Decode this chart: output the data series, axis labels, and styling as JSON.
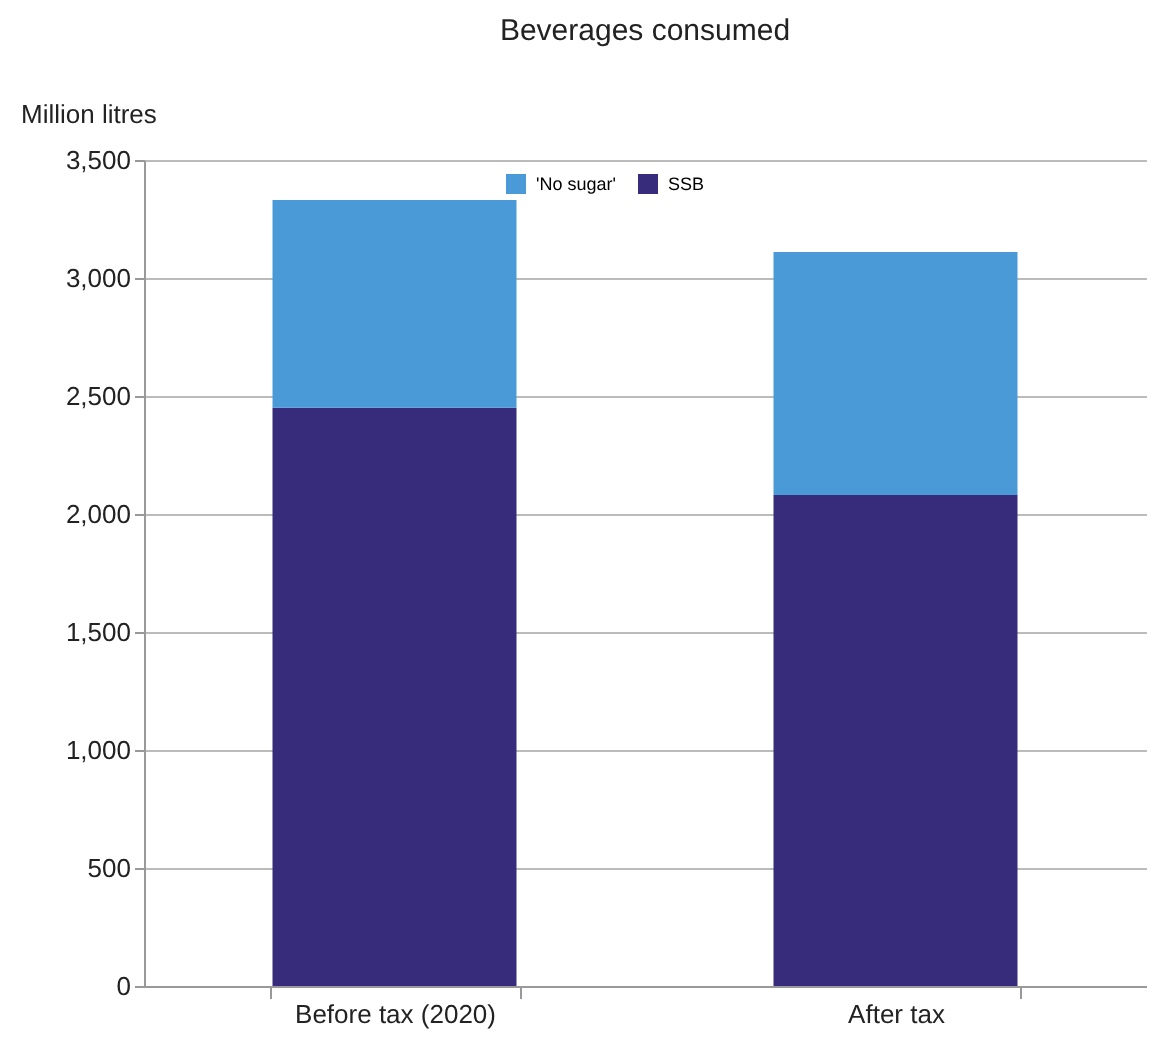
{
  "chart_data": {
    "type": "bar",
    "title": "Beverages consumed",
    "ylabel": "Million litres",
    "categories": [
      "Before tax (2020)",
      "After tax"
    ],
    "stacked": true,
    "series": [
      {
        "name": "SSB",
        "color": "#372c7c",
        "values": [
          2450,
          2080
        ]
      },
      {
        "name": "'No sugar'",
        "color": "#4a9ad8",
        "values": [
          880,
          1030
        ]
      }
    ],
    "ylim": [
      0,
      3500
    ],
    "yticks": [
      0,
      500,
      {
        "value": 1000,
        "label": "1,000"
      },
      {
        "value": 1500,
        "label": "1,500"
      },
      {
        "value": 2000,
        "label": "2,000"
      },
      {
        "value": 2500,
        "label": "2,500"
      },
      {
        "value": 3000,
        "label": "3,000"
      },
      {
        "value": 3500,
        "label": "3,500"
      }
    ],
    "grid": "y",
    "legend": "top"
  }
}
